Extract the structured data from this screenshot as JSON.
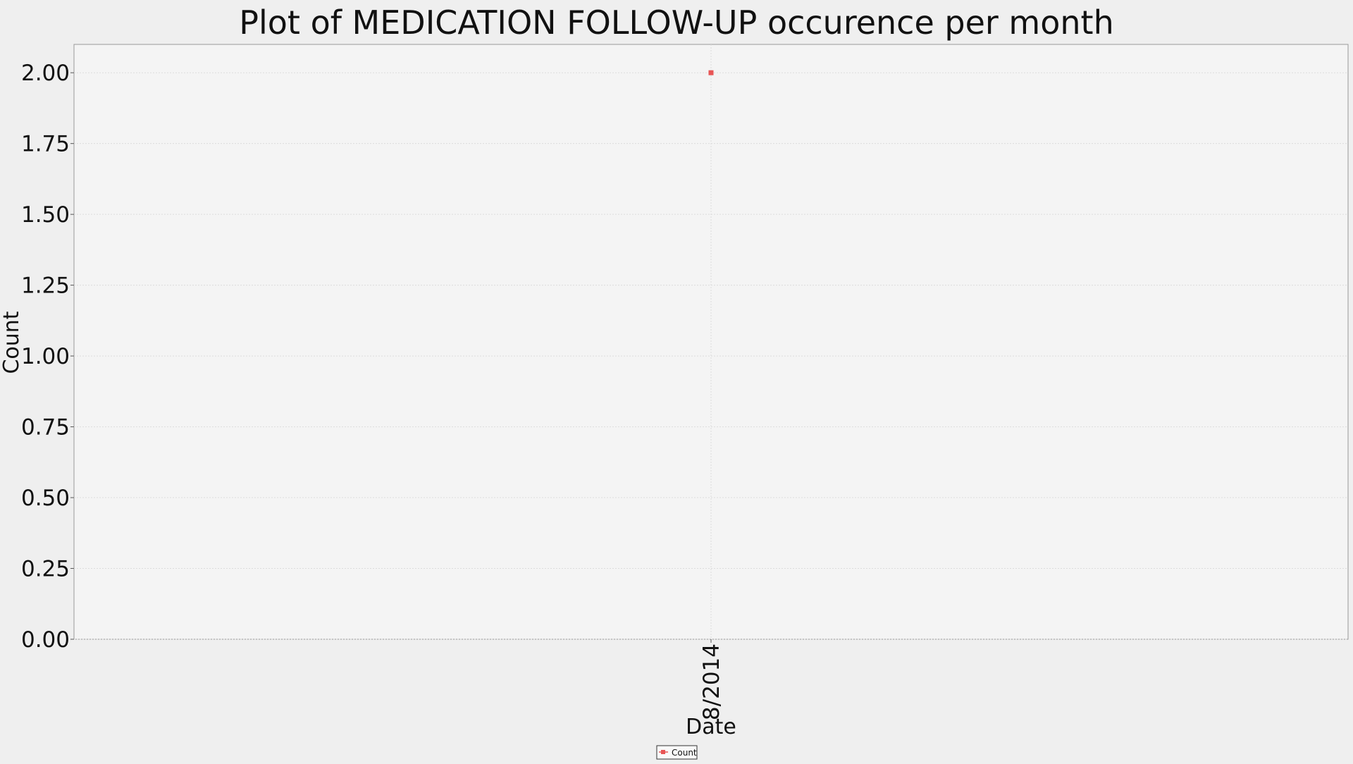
{
  "chart_data": {
    "type": "scatter",
    "title": "Plot of MEDICATION FOLLOW-UP occurence per month",
    "xlabel": "Date",
    "ylabel": "Count",
    "x_categories": [
      "8/2014"
    ],
    "series": [
      {
        "name": "Count",
        "color": "#e85555",
        "points": [
          {
            "x": "8/2014",
            "y": 2
          }
        ]
      }
    ],
    "ylim": [
      0,
      2.1
    ],
    "yticks": [
      "0.00",
      "0.25",
      "0.50",
      "0.75",
      "1.00",
      "1.25",
      "1.50",
      "1.75",
      "2.00"
    ],
    "grid": true,
    "legend_position": "bottom-center",
    "colors": {
      "page_background": "#efefef",
      "plot_background": "#f4f4f4",
      "grid": "#dcdcdc",
      "axis": "#888888"
    }
  }
}
